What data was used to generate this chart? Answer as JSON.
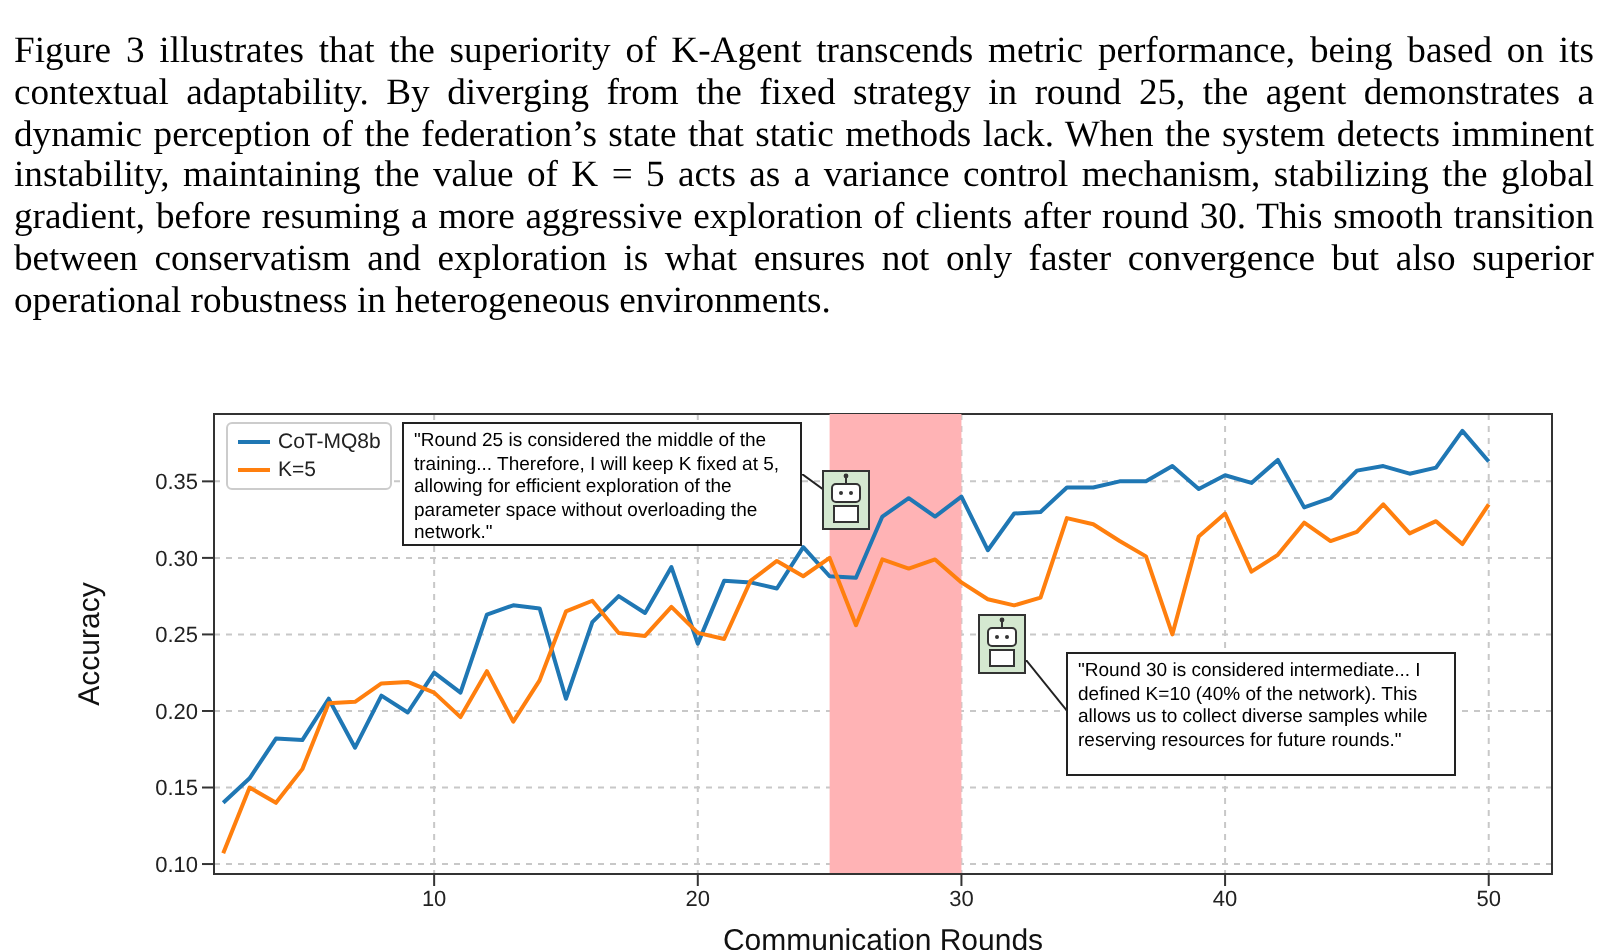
{
  "chart_data": {
    "type": "line",
    "xlabel": "Communication Rounds",
    "ylabel": "Accuracy",
    "x": [
      2,
      3,
      4,
      5,
      6,
      7,
      8,
      9,
      10,
      11,
      12,
      13,
      14,
      15,
      16,
      17,
      18,
      19,
      20,
      21,
      22,
      23,
      24,
      25,
      26,
      27,
      28,
      29,
      30,
      31,
      32,
      33,
      34,
      35,
      36,
      37,
      38,
      39,
      40,
      41,
      42,
      43,
      44,
      45,
      46,
      47,
      48,
      49,
      50
    ],
    "series": [
      {
        "name": "CoT-MQ8b",
        "color": "#1f77b4",
        "values": [
          0.14,
          0.156,
          0.182,
          0.181,
          0.208,
          0.176,
          0.21,
          0.199,
          0.225,
          0.212,
          0.263,
          0.269,
          0.267,
          0.208,
          0.258,
          0.275,
          0.264,
          0.294,
          0.244,
          0.285,
          0.284,
          0.28,
          0.307,
          0.288,
          0.287,
          0.327,
          0.339,
          0.327,
          0.34,
          0.305,
          0.329,
          0.33,
          0.346,
          0.346,
          0.35,
          0.35,
          0.36,
          0.345,
          0.354,
          0.349,
          0.364,
          0.333,
          0.339,
          0.357,
          0.36,
          0.355,
          0.359,
          0.383,
          0.363
        ]
      },
      {
        "name": "K=5",
        "color": "#ff7f0e",
        "values": [
          0.107,
          0.15,
          0.14,
          0.162,
          0.205,
          0.206,
          0.218,
          0.219,
          0.212,
          0.196,
          0.226,
          0.193,
          0.22,
          0.265,
          0.272,
          0.251,
          0.249,
          0.268,
          0.251,
          0.247,
          0.285,
          0.298,
          0.288,
          0.3,
          0.256,
          0.299,
          0.293,
          0.299,
          0.284,
          0.273,
          0.269,
          0.274,
          0.326,
          0.322,
          0.311,
          0.301,
          0.25,
          0.314,
          0.329,
          0.291,
          0.302,
          0.323,
          0.311,
          0.317,
          0.335,
          0.316,
          0.324,
          0.309,
          0.335
        ]
      }
    ],
    "xlim": [
      1.65,
      52.4
    ],
    "xticks": [
      10,
      20,
      30,
      40,
      50
    ],
    "ylim": [
      0.0935,
      0.394
    ],
    "yticks": [
      {
        "value": 0.1,
        "label": "0.10"
      },
      {
        "value": 0.15,
        "label": "0.15"
      },
      {
        "value": 0.2,
        "label": "0.20"
      },
      {
        "value": 0.25,
        "label": "0.25"
      },
      {
        "value": 0.3,
        "label": "0.30"
      },
      {
        "value": 0.35,
        "label": "0.35"
      }
    ],
    "bands": [
      {
        "axis": "x",
        "from": 25,
        "to": 30,
        "color": "#ffb3b5"
      }
    ],
    "grid": true,
    "legend": "top left",
    "marker": "none",
    "line_style": "solid",
    "annotations": [
      "Figure 3 illustrates that the superiority of K-Agent transcends metric performance, being based on its contextual adaptability. By diverging from the fixed strategy in round 25, the agent demonstrates a dynamic perception of the federation’s state that static methods lack. When the system detects imminent instability, maintaining the value of K = 5 acts as a variance control mechanism, stabilizing the global gradient, before resuming a more aggressive exploration of clients after round 30. This smooth transition between conservatism and exploration is what ensures not only faster convergence but also superior operational robustness in heterogeneous environments.",
      "\"Round 25 is considered the middle of the training... Therefore, I will keep K fixed at 5, allowing for efficient exploration of the parameter space without overloading the network.\"",
      "\"Round 30 is considered intermediate... I defined K=10 (40% of the network). This allows us to collect diverse samples while reserving resources for future rounds.\""
    ]
  }
}
